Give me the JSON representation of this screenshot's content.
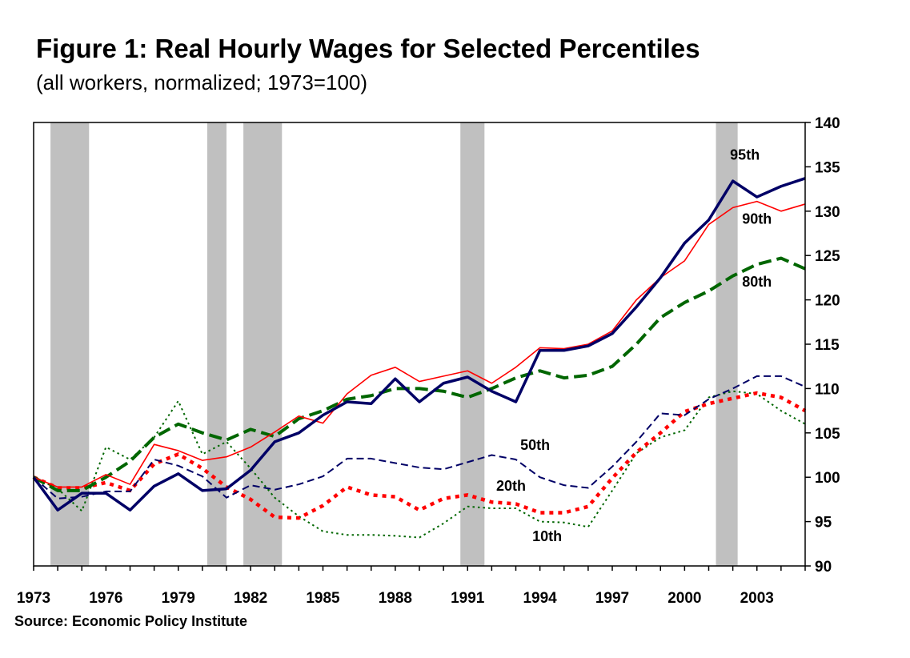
{
  "title": "Figure 1: Real Hourly Wages for Selected Percentiles",
  "subtitle": "(all workers, normalized; 1973=100)",
  "source": "Source: Economic Policy Institute",
  "chart_data": {
    "type": "line",
    "xlim": [
      1973,
      2005
    ],
    "ylim": [
      90,
      140
    ],
    "xticks": [
      1973,
      1976,
      1979,
      1982,
      1985,
      1988,
      1991,
      1994,
      1997,
      2000,
      2003
    ],
    "yticks": [
      90,
      95,
      100,
      105,
      110,
      115,
      120,
      125,
      130,
      135,
      140
    ],
    "y_axis_side": "right",
    "grid": false,
    "legend": "none (direct labels on lines)",
    "recession_shading": [
      [
        1973.7,
        1975.3
      ],
      [
        1980.2,
        1981.0
      ],
      [
        1981.7,
        1983.3
      ],
      [
        1990.7,
        1991.7
      ],
      [
        2001.3,
        2002.2
      ]
    ],
    "x": [
      1973,
      1974,
      1975,
      1976,
      1977,
      1978,
      1979,
      1980,
      1981,
      1982,
      1983,
      1984,
      1985,
      1986,
      1987,
      1988,
      1989,
      1990,
      1991,
      1992,
      1993,
      1994,
      1995,
      1996,
      1997,
      1998,
      1999,
      2000,
      2001,
      2002,
      2003,
      2004,
      2005
    ],
    "series": [
      {
        "name": "95th",
        "color": "#000066",
        "style": "solid-thick",
        "values": [
          100,
          96.3,
          98.2,
          98.2,
          96.3,
          99.0,
          100.4,
          98.5,
          98.7,
          100.8,
          104.0,
          105.0,
          107.0,
          108.5,
          108.3,
          111.1,
          108.5,
          110.6,
          111.3,
          109.7,
          108.5,
          114.3,
          114.3,
          114.8,
          116.2,
          119.2,
          122.5,
          126.4,
          129.0,
          133.4,
          131.6,
          132.8,
          133.7
        ]
      },
      {
        "name": "90th",
        "color": "#ff0000",
        "style": "solid-thin",
        "values": [
          100,
          98.9,
          98.9,
          100.3,
          99.2,
          103.7,
          103.0,
          101.9,
          102.3,
          103.4,
          105.1,
          106.9,
          106.1,
          109.4,
          111.5,
          112.4,
          110.8,
          111.4,
          112.0,
          110.6,
          112.4,
          114.6,
          114.5,
          115.0,
          116.5,
          120.0,
          122.5,
          124.4,
          128.5,
          130.4,
          131.1,
          130.0,
          130.8
        ]
      },
      {
        "name": "80th",
        "color": "#006600",
        "style": "long-dash",
        "values": [
          100,
          98.5,
          98.5,
          100.0,
          101.8,
          104.5,
          106.0,
          105.0,
          104.2,
          105.4,
          104.6,
          106.6,
          107.5,
          108.8,
          109.2,
          110.0,
          110.0,
          109.7,
          109.0,
          110.0,
          111.2,
          112.0,
          111.2,
          111.5,
          112.5,
          115.0,
          118.0,
          119.7,
          121.0,
          122.7,
          124.0,
          124.7,
          123.5
        ]
      },
      {
        "name": "50th",
        "color": "#000066",
        "style": "dash",
        "values": [
          100,
          97.6,
          97.8,
          98.4,
          98.4,
          102.0,
          101.3,
          100.1,
          97.7,
          99.1,
          98.6,
          99.2,
          100.1,
          102.1,
          102.1,
          101.6,
          101.1,
          100.9,
          101.7,
          102.5,
          102.0,
          100.0,
          99.1,
          98.8,
          101.2,
          104.0,
          107.2,
          107.0,
          108.8,
          110.0,
          111.4,
          111.4,
          110.2
        ]
      },
      {
        "name": "20th",
        "color": "#ff0000",
        "style": "dot-thick",
        "values": [
          100,
          98.8,
          98.8,
          99.4,
          98.5,
          101.5,
          102.6,
          101.0,
          98.9,
          97.5,
          95.5,
          95.4,
          96.8,
          98.9,
          98.0,
          97.8,
          96.3,
          97.6,
          98.0,
          97.2,
          97.0,
          96.0,
          96.0,
          96.7,
          99.9,
          102.8,
          105.0,
          107.4,
          108.3,
          108.9,
          109.5,
          109.0,
          107.5
        ]
      },
      {
        "name": "10th",
        "color": "#006600",
        "style": "dot-thin",
        "values": [
          100,
          98.7,
          96.2,
          103.4,
          102.0,
          104.5,
          108.6,
          102.6,
          104.0,
          101.0,
          97.7,
          95.6,
          93.9,
          93.5,
          93.5,
          93.4,
          93.2,
          94.8,
          96.7,
          96.5,
          96.5,
          95.0,
          94.9,
          94.4,
          98.5,
          102.7,
          104.5,
          105.3,
          109.0,
          109.7,
          109.4,
          107.5,
          106.0
        ]
      }
    ]
  }
}
